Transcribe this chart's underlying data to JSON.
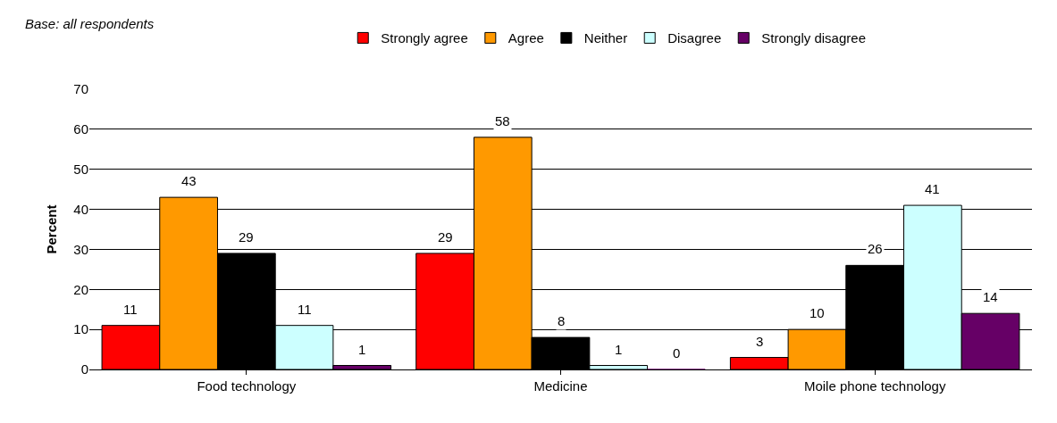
{
  "chart_data": {
    "type": "bar",
    "ylabel": "Percent",
    "annotations": [
      "Base: all respondents"
    ],
    "categories": [
      "Food technology",
      "Medicine",
      "Moile phone technology"
    ],
    "series": [
      {
        "name": "Strongly agree",
        "color": "#ff0000",
        "values": [
          11,
          29,
          3
        ]
      },
      {
        "name": "Agree",
        "color": "#ff9900",
        "values": [
          43,
          58,
          10
        ]
      },
      {
        "name": "Neither",
        "color": "#000000",
        "values": [
          29,
          8,
          26
        ]
      },
      {
        "name": "Disagree",
        "color": "#ccffff",
        "values": [
          11,
          1,
          41
        ]
      },
      {
        "name": "Strongly disagree",
        "color": "#660066",
        "values": [
          1,
          0,
          14
        ]
      }
    ],
    "ylim": [
      0,
      70
    ],
    "yticks": [
      0,
      10,
      20,
      30,
      40,
      50,
      60,
      70
    ],
    "grid": "y",
    "legend": "top",
    "data_labels": true
  }
}
